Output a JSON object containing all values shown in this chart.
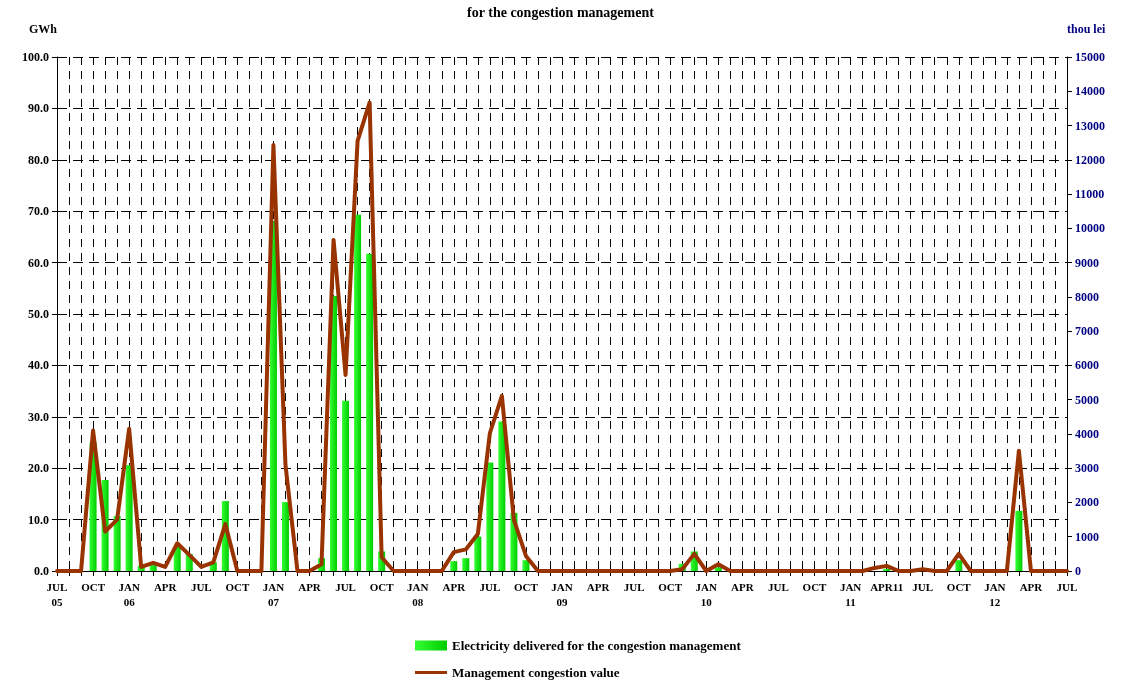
{
  "chart_data": {
    "type": "bar",
    "title": "for the congestion management",
    "ylabel": "GWh",
    "y2label": "thou lei",
    "categories": [
      "JUL\n05",
      null,
      null,
      "OCT",
      null,
      null,
      "JAN\n06",
      null,
      null,
      "APR",
      null,
      null,
      "JUL",
      null,
      null,
      "OCT",
      null,
      null,
      "JAN\n07",
      null,
      null,
      "APR",
      null,
      null,
      "JUL",
      null,
      null,
      "OCT",
      null,
      null,
      "JAN\n08",
      null,
      null,
      "APR",
      null,
      null,
      "JUL",
      null,
      null,
      "OCT",
      null,
      null,
      "JAN\n09",
      null,
      null,
      "APR",
      null,
      null,
      "JUL",
      null,
      null,
      "OCT",
      null,
      null,
      "JAN\n10",
      null,
      null,
      "APR",
      null,
      null,
      "JUL",
      null,
      null,
      "OCT",
      null,
      null,
      "JAN\n11",
      null,
      null,
      "APR11",
      null,
      null,
      "JUL",
      null,
      null,
      "OCT",
      null,
      null,
      "JAN\n12",
      null,
      null,
      "APR",
      null,
      null,
      "JUL"
    ],
    "series": [
      {
        "name": "Electricity delivered for the congestion management",
        "color": "#00cc00",
        "values": [
          0,
          0,
          0,
          25,
          17.7,
          10.7,
          20.6,
          1.0,
          1.2,
          0,
          4.7,
          3.3,
          0,
          1.7,
          13.6,
          0,
          0,
          0,
          68.1,
          13.4,
          0,
          0,
          2.5,
          53.5,
          33.1,
          69.3,
          61.7,
          3.8,
          0,
          0,
          0,
          0,
          0,
          1.9,
          2.5,
          6.7,
          21.1,
          29.1,
          11.3,
          2.1,
          0,
          0,
          0,
          0,
          0,
          0,
          0,
          0,
          0,
          0,
          0,
          0,
          1.4,
          3.8,
          0,
          0.7,
          0,
          0,
          0,
          0,
          0,
          0,
          0,
          0,
          0,
          0,
          0,
          0,
          0,
          0.4,
          0,
          0,
          0,
          0,
          0,
          2.1,
          0,
          0,
          0,
          0,
          11.7,
          0,
          0,
          0,
          0
        ]
      },
      {
        "name": "Management congestion value",
        "type": "line",
        "axis": "y2",
        "color": "#993300",
        "values": [
          0,
          0,
          0,
          4100,
          1150,
          1500,
          4150,
          120,
          240,
          120,
          810,
          470,
          120,
          250,
          1370,
          0,
          0,
          0,
          12430,
          3100,
          0,
          0,
          200,
          9660,
          5720,
          12550,
          13670,
          400,
          0,
          0,
          0,
          0,
          0,
          550,
          630,
          1080,
          4020,
          5110,
          1490,
          440,
          0,
          0,
          0,
          0,
          0,
          0,
          0,
          0,
          0,
          0,
          0,
          0,
          50,
          500,
          0,
          200,
          0,
          0,
          0,
          0,
          0,
          0,
          0,
          0,
          0,
          0,
          0,
          0,
          90,
          150,
          0,
          0,
          50,
          0,
          0,
          500,
          0,
          0,
          0,
          0,
          3510,
          0,
          0,
          0,
          0
        ]
      }
    ],
    "ylim": [
      0,
      100
    ],
    "yticks": [
      {
        "value": 0,
        "label": "0.0"
      },
      {
        "value": 10,
        "label": "10.0"
      },
      {
        "value": 20,
        "label": "20.0"
      },
      {
        "value": 30,
        "label": "30.0"
      },
      {
        "value": 40,
        "label": "40.0"
      },
      {
        "value": 50,
        "label": "50.0"
      },
      {
        "value": 60,
        "label": "60.0"
      },
      {
        "value": 70,
        "label": "70.0"
      },
      {
        "value": 80,
        "label": "80.0"
      },
      {
        "value": 90,
        "label": "90.0"
      },
      {
        "value": 100,
        "label": "100.0"
      }
    ],
    "y2lim": [
      0,
      15000
    ],
    "y2ticks": [
      0,
      1000,
      2000,
      3000,
      4000,
      5000,
      6000,
      7000,
      8000,
      9000,
      10000,
      11000,
      12000,
      13000,
      14000,
      15000
    ],
    "grid": true,
    "legend": "bottom",
    "marker": "none",
    "line_style": "solid"
  }
}
